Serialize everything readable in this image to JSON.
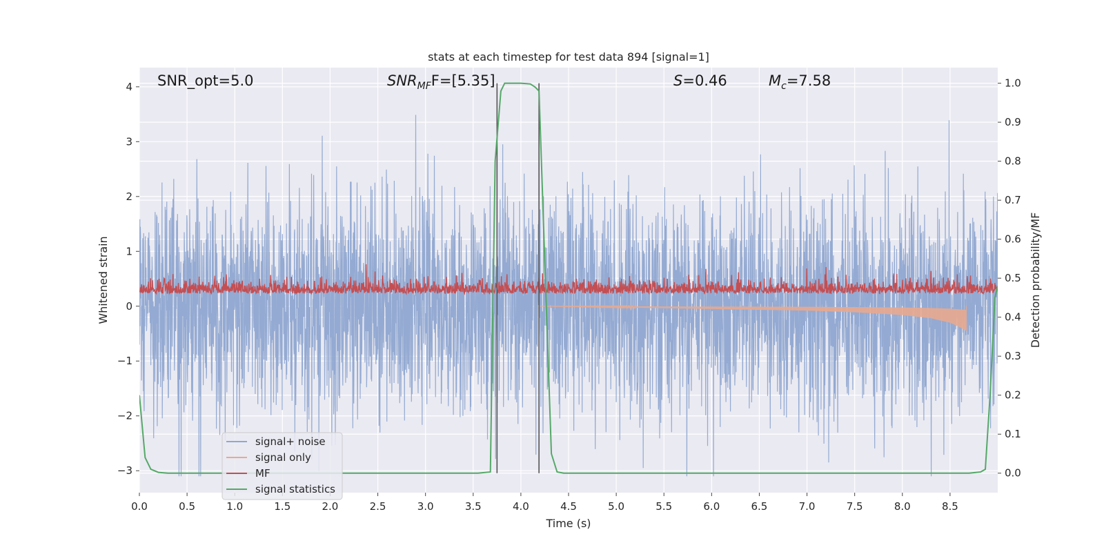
{
  "chart_data": {
    "type": "line",
    "title": "stats at each timestep for test data 894 [signal=1]",
    "xlabel": "Time (s)",
    "ylabel_left": "Whitened strain",
    "ylabel_right": "Detection probability/MF",
    "xlim": [
      0.0,
      9.0
    ],
    "ylim_left": [
      -3.4,
      4.35
    ],
    "ylim_right": [
      -0.05,
      1.04
    ],
    "x_ticks": [
      "0.0",
      "0.5",
      "1.0",
      "1.5",
      "2.0",
      "2.5",
      "3.0",
      "3.5",
      "4.0",
      "4.5",
      "5.0",
      "5.5",
      "6.0",
      "6.5",
      "7.0",
      "7.5",
      "8.0",
      "8.5"
    ],
    "y_ticks_left": [
      "−3",
      "−2",
      "−1",
      "0",
      "1",
      "2",
      "3",
      "4"
    ],
    "y_ticks_right": [
      "0.0",
      "0.1",
      "0.2",
      "0.3",
      "0.4",
      "0.5",
      "0.6",
      "0.7",
      "0.8",
      "0.9",
      "1.0"
    ],
    "grid": true,
    "legend_position": "lower-left",
    "annotations": {
      "snr_opt": "SNR_opt=5.0",
      "snr_mf_main": "SNR",
      "snr_mf_sub": "MF",
      "snr_mf_rest": "F=[5.35]",
      "s_main": "S",
      "s_rest": "=0.46",
      "mc_main": "M",
      "mc_sub": "c",
      "mc_rest": "=7.58"
    },
    "vertical_lines": [
      3.75,
      4.19
    ],
    "series": [
      {
        "name": "signal+ noise",
        "color": "#8fa7d0",
        "axis": "left",
        "description": "white Gaussian noise with injected signal, roughly unit variance",
        "stats": {
          "mean": 0.0,
          "std": 1.0,
          "min": -3.1,
          "max": 4.0
        }
      },
      {
        "name": "signal only",
        "color": "#e8a98e",
        "axis": "left",
        "description": "chirp waveform, amplitude growing toward merger",
        "points": [
          [
            4.2,
            0.0
          ],
          [
            5.0,
            -0.02
          ],
          [
            6.0,
            -0.05
          ],
          [
            7.0,
            -0.08
          ],
          [
            7.5,
            -0.11
          ],
          [
            8.0,
            -0.16
          ],
          [
            8.3,
            -0.22
          ],
          [
            8.5,
            -0.3
          ],
          [
            8.6,
            -0.38
          ],
          [
            8.67,
            -0.45
          ]
        ]
      },
      {
        "name": "MF",
        "color": "#c44e52",
        "axis": "left",
        "description": "matched filter output",
        "stats": {
          "mean": 0.28,
          "min": 0.0,
          "max": 0.85
        }
      },
      {
        "name": "signal statistics",
        "color": "#55a868",
        "axis": "right",
        "points": [
          [
            0.0,
            0.2
          ],
          [
            0.06,
            0.04
          ],
          [
            0.12,
            0.01
          ],
          [
            0.2,
            0.002
          ],
          [
            0.3,
            0.0
          ],
          [
            1.0,
            0.0
          ],
          [
            2.0,
            0.0
          ],
          [
            3.0,
            0.0
          ],
          [
            3.55,
            0.0
          ],
          [
            3.68,
            0.003
          ],
          [
            3.73,
            0.8
          ],
          [
            3.79,
            0.98
          ],
          [
            3.83,
            1.0
          ],
          [
            4.0,
            1.0
          ],
          [
            4.1,
            0.998
          ],
          [
            4.15,
            0.99
          ],
          [
            4.19,
            0.98
          ],
          [
            4.25,
            0.55
          ],
          [
            4.32,
            0.05
          ],
          [
            4.38,
            0.003
          ],
          [
            4.45,
            0.0
          ],
          [
            5.0,
            0.0
          ],
          [
            6.0,
            0.0
          ],
          [
            7.0,
            0.0
          ],
          [
            8.0,
            0.0
          ],
          [
            8.7,
            0.0
          ],
          [
            8.82,
            0.003
          ],
          [
            8.87,
            0.01
          ],
          [
            8.92,
            0.2
          ],
          [
            8.97,
            0.45
          ],
          [
            9.0,
            0.48
          ]
        ]
      }
    ]
  }
}
